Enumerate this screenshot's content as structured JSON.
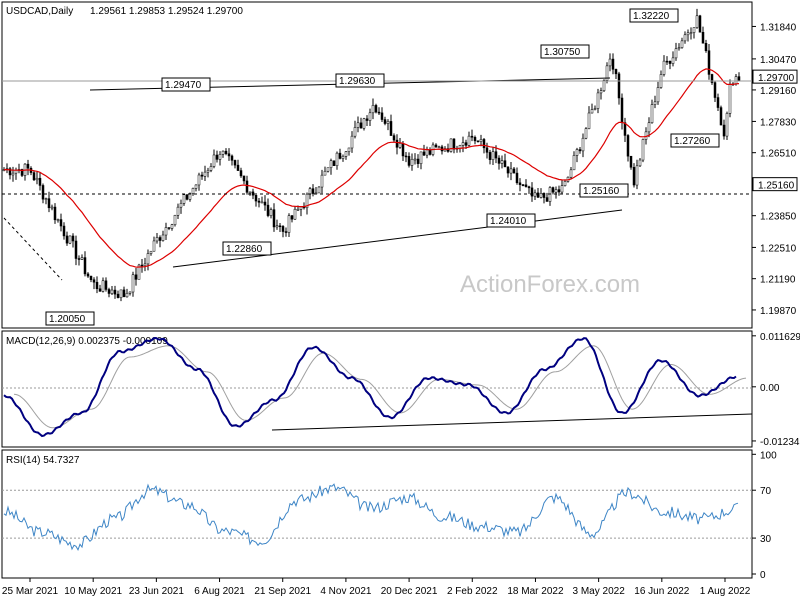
{
  "chart_data": {
    "type": "candlestick",
    "symbol_label": "USDCAD,Daily",
    "ohlc_values": "1.29561 1.29853 1.29524 1.29700",
    "last_price": "1.29700",
    "price_axis": {
      "range": [
        1.1915,
        1.3283
      ],
      "ticks": [
        "1.31840",
        "1.30470",
        "1.29160",
        "1.27830",
        "1.26510",
        "1.25160",
        "1.23850",
        "1.22510",
        "1.21190",
        "1.19870"
      ],
      "tick_values": [
        1.3184,
        1.3047,
        1.2916,
        1.2783,
        1.2651,
        1.2516,
        1.2385,
        1.2251,
        1.2119,
        1.1987
      ],
      "highlighted": [
        "1.29700",
        "1.25160"
      ]
    },
    "date_axis": {
      "labels": [
        "25 Mar 2021",
        "10 May 2021",
        "23 Jun 2021",
        "6 Aug 2021",
        "21 Sep 2021",
        "4 Nov 2021",
        "20 Dec 2021",
        "2 Feb 2022",
        "18 Mar 2022",
        "3 May 2022",
        "16 Jun 2022",
        "1 Aug 2022"
      ]
    },
    "price_path": {
      "dates": [
        "25 Mar 2021",
        "10 May 2021",
        "1 Jun 2021",
        "23 Jun 2021",
        "6 Aug 2021",
        "21 Sep 2021",
        "4 Nov 2021",
        "22 Nov 2021",
        "20 Dec 2021",
        "2 Feb 2022",
        "18 Mar 2022",
        "5 Apr 2022",
        "3 May 2022",
        "12 May 2022",
        "1 Jun 2022",
        "16 Jun 2022",
        "14 Jul 2022",
        "1 Aug 2022",
        "5 Aug 2022"
      ],
      "close": [
        1.258,
        1.2095,
        1.205,
        1.228,
        1.266,
        1.232,
        1.268,
        1.286,
        1.262,
        1.272,
        1.245,
        1.25,
        1.29,
        1.3075,
        1.252,
        1.3,
        1.3222,
        1.2726,
        1.297
      ]
    },
    "annotations": [
      {
        "text": "1.20050",
        "value": 1.2005
      },
      {
        "text": "1.29470",
        "value": 1.2947
      },
      {
        "text": "1.22860",
        "value": 1.2286
      },
      {
        "text": "1.29630",
        "value": 1.2963
      },
      {
        "text": "1.24010",
        "value": 1.2401
      },
      {
        "text": "1.30750",
        "value": 1.3075
      },
      {
        "text": "1.25160",
        "value": 1.2516
      },
      {
        "text": "1.32220",
        "value": 1.3222
      },
      {
        "text": "1.27260",
        "value": 1.2726
      }
    ],
    "indicators": {
      "ma_color": "#dd0000",
      "watermark": "ActionForex.com",
      "macd": {
        "label": "MACD(12,26,9) 0.002375 -0.000109",
        "ticks": [
          "0.011629",
          "0.00",
          "-0.012348"
        ],
        "tick_values": [
          0.011629,
          0.0,
          -0.012348
        ],
        "range": [
          -0.0135,
          0.0125
        ],
        "main_color": "#000080",
        "signal_color": "#a0a0a0",
        "points": [
          -0.002,
          -0.011,
          -0.006,
          0.008,
          0.011,
          0.004,
          -0.009,
          -0.003,
          0.009,
          0.002,
          -0.007,
          0.002,
          0.0005,
          -0.006,
          0.004,
          0.011,
          -0.006,
          0.006,
          -0.002,
          0.002375
        ]
      },
      "rsi": {
        "label": "RSI(14) 54.7327",
        "ticks": [
          "100",
          "70",
          "30",
          "0"
        ],
        "tick_values": [
          100,
          70,
          30,
          0
        ],
        "levels": [
          70,
          30
        ],
        "color": "#3d85c6",
        "points": [
          52,
          35,
          25,
          46,
          70,
          58,
          36,
          28,
          62,
          72,
          55,
          64,
          48,
          40,
          35,
          64,
          34,
          68,
          52,
          46,
          54.7327
        ]
      }
    }
  }
}
